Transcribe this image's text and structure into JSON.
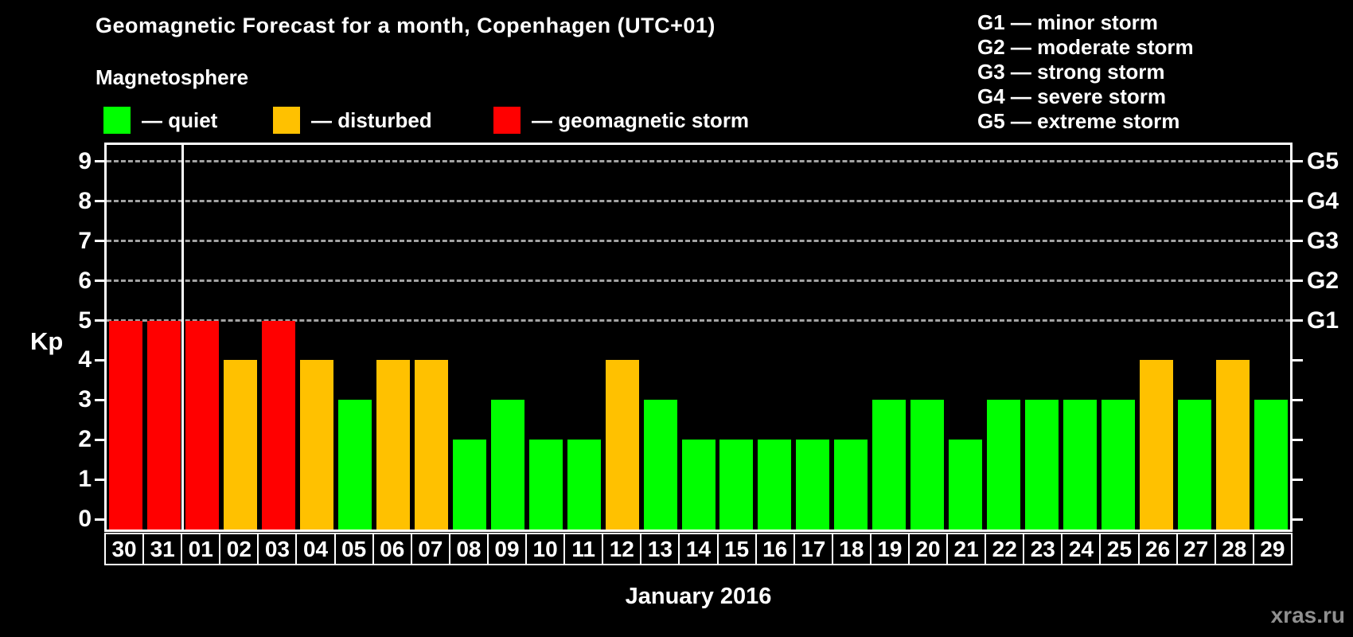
{
  "header": {
    "title": "Geomagnetic Forecast for a month, Copenhagen (UTC+01)",
    "subtitle": "Magnetosphere"
  },
  "legend": {
    "items": [
      {
        "status": "quiet",
        "label": "— quiet"
      },
      {
        "status": "disturbed",
        "label": "— disturbed"
      },
      {
        "status": "storm",
        "label": "— geomagnetic storm"
      }
    ]
  },
  "g_legend": {
    "items": [
      "G1 — minor storm",
      "G2 — moderate storm",
      "G3 — strong storm",
      "G4 — severe storm",
      "G5 — extreme storm"
    ]
  },
  "axes": {
    "y_label": "Kp",
    "x_label": "January 2016",
    "y_ticks": [
      0,
      1,
      2,
      3,
      4,
      5,
      6,
      7,
      8,
      9
    ],
    "gridline_levels": [
      5,
      6,
      7,
      8,
      9
    ],
    "right_axis_labels": {
      "5": "G1",
      "6": "G2",
      "7": "G3",
      "8": "G4",
      "9": "G5"
    }
  },
  "colors": {
    "quiet": "#00ff00",
    "disturbed": "#ffc100",
    "storm": "#ff0000",
    "background": "#000000",
    "frame": "#ffffff",
    "gridline": "#a3a3a3",
    "watermark": "#8f8f8f"
  },
  "watermark": "xras.ru",
  "chart_data": {
    "type": "bar",
    "title": "Geomagnetic Forecast for a month, Copenhagen (UTC+01)",
    "xlabel": "January 2016",
    "ylabel": "Kp",
    "ylim": [
      0,
      9
    ],
    "grid": "horizontal dashed at Kp 5-9 only",
    "legend_position": "top-left and top-right",
    "categories": [
      "30",
      "31",
      "01",
      "02",
      "03",
      "04",
      "05",
      "06",
      "07",
      "08",
      "09",
      "10",
      "11",
      "12",
      "13",
      "14",
      "15",
      "16",
      "17",
      "18",
      "19",
      "20",
      "21",
      "22",
      "23",
      "24",
      "25",
      "26",
      "27",
      "28",
      "29"
    ],
    "values": [
      5,
      5,
      5,
      4,
      5,
      4,
      3,
      4,
      4,
      2,
      3,
      2,
      2,
      4,
      3,
      2,
      2,
      2,
      2,
      2,
      3,
      3,
      2,
      3,
      3,
      3,
      3,
      4,
      3,
      4,
      3
    ],
    "statuses": [
      "storm",
      "storm",
      "storm",
      "disturbed",
      "storm",
      "disturbed",
      "quiet",
      "disturbed",
      "disturbed",
      "quiet",
      "quiet",
      "quiet",
      "quiet",
      "disturbed",
      "quiet",
      "quiet",
      "quiet",
      "quiet",
      "quiet",
      "quiet",
      "quiet",
      "quiet",
      "quiet",
      "quiet",
      "quiet",
      "quiet",
      "quiet",
      "disturbed",
      "quiet",
      "disturbed",
      "quiet"
    ],
    "month_boundary_index": 2
  }
}
